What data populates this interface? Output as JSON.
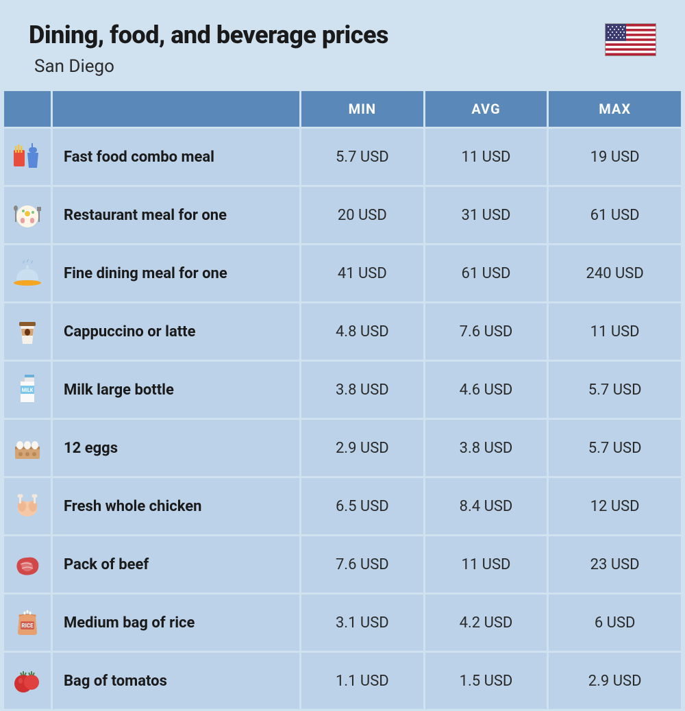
{
  "header": {
    "title": "Dining, food, and beverage prices",
    "subtitle": "San Diego"
  },
  "columns": [
    "MIN",
    "AVG",
    "MAX"
  ],
  "rows": [
    {
      "icon": "fast-food",
      "label": "Fast food combo meal",
      "min": "5.7 USD",
      "avg": "11 USD",
      "max": "19 USD"
    },
    {
      "icon": "restaurant",
      "label": "Restaurant meal for one",
      "min": "20 USD",
      "avg": "31 USD",
      "max": "61 USD"
    },
    {
      "icon": "fine-dining",
      "label": "Fine dining meal for one",
      "min": "41 USD",
      "avg": "61 USD",
      "max": "240 USD"
    },
    {
      "icon": "coffee",
      "label": "Cappuccino or latte",
      "min": "4.8 USD",
      "avg": "7.6 USD",
      "max": "11 USD"
    },
    {
      "icon": "milk",
      "label": "Milk large bottle",
      "min": "3.8 USD",
      "avg": "4.6 USD",
      "max": "5.7 USD"
    },
    {
      "icon": "eggs",
      "label": "12 eggs",
      "min": "2.9 USD",
      "avg": "3.8 USD",
      "max": "5.7 USD"
    },
    {
      "icon": "chicken",
      "label": "Fresh whole chicken",
      "min": "6.5 USD",
      "avg": "8.4 USD",
      "max": "12 USD"
    },
    {
      "icon": "beef",
      "label": "Pack of beef",
      "min": "7.6 USD",
      "avg": "11 USD",
      "max": "23 USD"
    },
    {
      "icon": "rice",
      "label": "Medium bag of rice",
      "min": "3.1 USD",
      "avg": "4.2 USD",
      "max": "6 USD"
    },
    {
      "icon": "tomato",
      "label": "Bag of tomatos",
      "min": "1.1 USD",
      "avg": "1.5 USD",
      "max": "2.9 USD"
    }
  ],
  "colors": {
    "page_bg": "#d0e1f0",
    "header_bg": "#5a88b8",
    "header_text": "#ffffff",
    "cell_bg": "#bcd2e8",
    "title_text": "#1a1a1a",
    "value_text": "#2a2a2a"
  }
}
